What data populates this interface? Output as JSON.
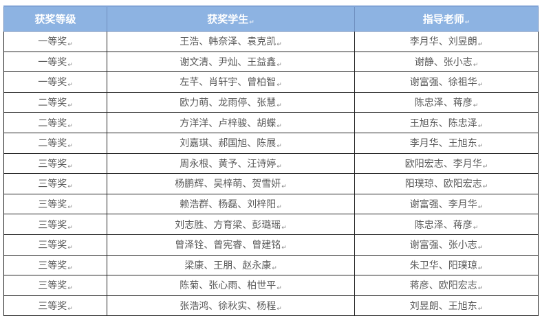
{
  "return_mark": "↵",
  "colors": {
    "header_bg": "#8db3e2",
    "header_text": "#ffffff",
    "body_text": "#5a5a5a"
  },
  "table": {
    "headers": [
      "获奖等级",
      "获奖学生",
      "指导老师"
    ],
    "rows": [
      [
        "一等奖",
        "王浩、韩奈泽、袁克凯",
        "李月华、刘昱朗"
      ],
      [
        "一等奖",
        "谢文清、尹灿、王益鑫",
        "谢静、张小志"
      ],
      [
        "一等奖",
        "左芊、肖轩宇、曾柏智",
        "谢富强、徐祖华"
      ],
      [
        "二等奖",
        "欧力萌、龙雨停、张慧",
        "陈忠泽、蒋彦"
      ],
      [
        "二等奖",
        "方洋洋、卢梓骏、胡蝶",
        "王旭东、陈忠泽"
      ],
      [
        "二等奖",
        "刘嘉琪、郝国旭、陈展",
        "李月华、王旭东"
      ],
      [
        "三等奖",
        "周永根、黄予、汪诗婷",
        "欧阳宏志、李月华"
      ],
      [
        "三等奖",
        "杨鹏辉、吴梓萌、贺雪妍",
        "阳璞琼、欧阳宏志"
      ],
      [
        "三等奖",
        "赖浩群、杨磊、刘梓阳",
        "谢富强、李月华"
      ],
      [
        "三等奖",
        "刘志胜、方育梁、彭璐瑶",
        "陈忠泽、蒋彦"
      ],
      [
        "三等奖",
        "曾泽铨、曾宪睿、曾建铭",
        "谢富强、张小志"
      ],
      [
        "三等奖",
        "梁康、王朋、赵永康",
        "朱卫华、阳璞琼"
      ],
      [
        "三等奖",
        "陈菊、张心雨、柏世平",
        "蒋彦、欧阳宏志"
      ],
      [
        "三等奖",
        "张浩鸿、徐秋实、杨程",
        "刘昱朗、王旭东"
      ]
    ]
  }
}
